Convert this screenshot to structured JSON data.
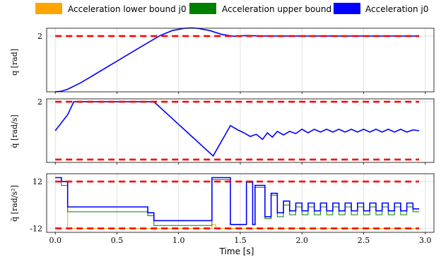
{
  "legend": {
    "items": [
      {
        "label": "Acceleration lower bound j0",
        "color": "#FFA500"
      },
      {
        "label": "Acceleration upper bound j0",
        "color": "#008000"
      },
      {
        "label": "Acceleration j0",
        "color": "#0000FF"
      }
    ]
  },
  "colors": {
    "bound": "#FF0000",
    "signal": "#0000FF",
    "lower": "#FFA500",
    "upper": "#008000",
    "grid": "#d9d9d9"
  },
  "xlabel": "Time [s]",
  "x_ticks": [
    "0.0",
    "0.5",
    "1.0",
    "1.5",
    "2.0",
    "2.5",
    "3.0"
  ],
  "chart_data": [
    {
      "type": "line",
      "ylabel": "q [rad]",
      "y_ticks": [
        "2"
      ],
      "xlim": [
        -0.07,
        3.07
      ],
      "ylim": [
        0,
        2.28
      ],
      "bounds": [
        2
      ],
      "series": [
        {
          "x": [
            0,
            0.05,
            0.1,
            0.2,
            0.3,
            0.5,
            0.7,
            0.85,
            0.95,
            1.05,
            1.1,
            1.15,
            1.25,
            1.35,
            1.45,
            1.55,
            1.7,
            2.0,
            2.5,
            2.95
          ],
          "y": [
            0,
            0.02,
            0.09,
            0.31,
            0.57,
            1.1,
            1.63,
            2.02,
            2.2,
            2.28,
            2.29,
            2.28,
            2.2,
            2.06,
            1.99,
            2.02,
            2.0,
            2.0,
            2.0,
            2.0
          ]
        }
      ]
    },
    {
      "type": "line",
      "ylabel": "q̇ [rad/s]",
      "y_ticks": [
        "2"
      ],
      "xlim": [
        -0.07,
        3.07
      ],
      "ylim": [
        -2.2,
        2.2
      ],
      "bounds": [
        2,
        -2
      ],
      "series": [
        {
          "x": [
            0,
            0.1,
            0.15,
            0.8,
            1.28,
            1.42,
            1.48,
            1.53,
            1.58,
            1.63,
            1.68,
            1.72,
            1.76,
            1.8,
            1.85,
            1.9,
            1.95,
            2.0,
            2.05,
            2.1,
            2.15,
            2.2,
            2.25,
            2.3,
            2.35,
            2.4,
            2.45,
            2.5,
            2.55,
            2.6,
            2.65,
            2.7,
            2.75,
            2.8,
            2.85,
            2.9,
            2.95
          ],
          "y": [
            0,
            1.1,
            2,
            2,
            -1.75,
            0.35,
            0.05,
            -0.15,
            -0.4,
            -0.25,
            -0.6,
            -0.15,
            -0.45,
            -0.05,
            -0.3,
            -0.05,
            -0.2,
            0.1,
            -0.15,
            0.1,
            -0.1,
            0.1,
            -0.1,
            0.1,
            -0.1,
            0.1,
            -0.1,
            0.1,
            -0.1,
            0.1,
            -0.1,
            0.1,
            -0.1,
            0.1,
            -0.1,
            0.05,
            0
          ]
        }
      ]
    },
    {
      "type": "line",
      "ylabel": "q̈ [rad/s²]",
      "y_ticks": [
        "12",
        "-12"
      ],
      "xlim": [
        -0.07,
        3.07
      ],
      "ylim": [
        -14,
        16
      ],
      "bounds": [
        12,
        -12
      ],
      "series": [
        {
          "name": "Acceleration lower bound j0",
          "x": [
            0,
            0.05,
            0.05,
            0.1,
            0.1,
            0.75,
            0.75,
            0.8,
            0.8,
            1.27,
            1.27,
            1.3,
            1.3,
            1.42,
            1.42,
            1.55,
            1.55,
            1.6,
            1.6,
            2.95
          ],
          "y": [
            12,
            12,
            12,
            12,
            -12,
            -12,
            -12,
            -12,
            -12,
            -12,
            -10,
            -10,
            -12,
            -12,
            -12,
            -12,
            -12,
            -12,
            -12,
            -12
          ]
        },
        {
          "name": "Acceleration upper bound j0",
          "x": [
            0,
            0.05,
            0.05,
            0.1,
            0.1,
            0.75,
            0.75,
            0.8,
            0.8,
            1.27,
            1.27,
            1.3,
            1.3,
            1.42,
            1.42,
            1.45,
            1.45,
            1.55,
            1.55,
            1.6,
            1.6,
            1.62,
            1.62,
            1.7,
            1.7,
            1.75,
            1.75,
            1.8,
            1.8,
            1.85,
            1.85,
            1.9,
            1.9,
            1.95,
            1.95,
            2.0,
            2.0,
            2.05,
            2.05,
            2.1,
            2.1,
            2.15,
            2.15,
            2.2,
            2.2,
            2.25,
            2.25,
            2.3,
            2.3,
            2.35,
            2.35,
            2.4,
            2.4,
            2.45,
            2.45,
            2.5,
            2.5,
            2.55,
            2.55,
            2.6,
            2.6,
            2.65,
            2.65,
            2.7,
            2.7,
            2.75,
            2.75,
            2.8,
            2.8,
            2.85,
            2.85,
            2.9,
            2.9,
            2.95
          ],
          "y": [
            14,
            14,
            10,
            10,
            -3.5,
            -3.5,
            -5.5,
            -5.5,
            -10.5,
            -10.5,
            13,
            13,
            13,
            13,
            -10,
            -10,
            -10,
            -10,
            11.5,
            11.5,
            -10,
            -10,
            9,
            9,
            -7,
            -7,
            5,
            5,
            -6,
            -6,
            0,
            0,
            -5,
            -5,
            -1,
            -1,
            -5,
            -5,
            -1,
            -1,
            -5,
            -5,
            -1,
            -1,
            -5,
            -5,
            -1,
            -1,
            -5,
            -5,
            -1,
            -1,
            -5,
            -5,
            -1,
            -1,
            -5,
            -5,
            -1,
            -1,
            -5,
            -5,
            -1,
            -1,
            -5,
            -5,
            -1,
            -1,
            -5,
            -5,
            -1,
            -1,
            -3.5,
            -3.5
          ]
        },
        {
          "name": "Acceleration j0",
          "x": [
            0,
            0.05,
            0.05,
            0.1,
            0.1,
            0.75,
            0.75,
            0.8,
            0.8,
            1.27,
            1.27,
            1.42,
            1.42,
            1.55,
            1.55,
            1.6,
            1.6,
            1.62,
            1.62,
            1.7,
            1.7,
            1.75,
            1.75,
            1.8,
            1.8,
            1.85,
            1.85,
            1.9,
            1.9,
            1.95,
            1.95,
            2.0,
            2.0,
            2.05,
            2.05,
            2.1,
            2.1,
            2.15,
            2.15,
            2.2,
            2.2,
            2.25,
            2.25,
            2.3,
            2.3,
            2.35,
            2.35,
            2.4,
            2.4,
            2.45,
            2.45,
            2.5,
            2.5,
            2.55,
            2.55,
            2.6,
            2.6,
            2.65,
            2.65,
            2.7,
            2.7,
            2.75,
            2.75,
            2.8,
            2.8,
            2.85,
            2.85,
            2.9,
            2.9,
            2.95
          ],
          "y": [
            14,
            14,
            12,
            12,
            -1,
            -1,
            -4,
            -4,
            -8,
            -8,
            14,
            14,
            -10,
            -10,
            12,
            12,
            -10,
            -10,
            10,
            10,
            -6,
            -6,
            6,
            6,
            -4,
            -4,
            2,
            2,
            -3,
            -3,
            1,
            1,
            -3,
            -3,
            1,
            1,
            -3,
            -3,
            1,
            1,
            -3,
            -3,
            1,
            1,
            -3,
            -3,
            1,
            1,
            -3,
            -3,
            1,
            1,
            -3,
            -3,
            1,
            1,
            -3,
            -3,
            1,
            1,
            -3,
            -3,
            1,
            1,
            -3,
            -3,
            1,
            1,
            -2,
            -2
          ]
        }
      ]
    }
  ]
}
